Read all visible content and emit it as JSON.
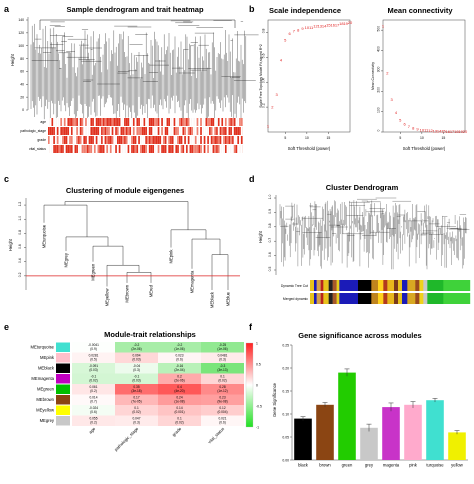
{
  "panel_labels": [
    "a",
    "b",
    "c",
    "d",
    "e",
    "f"
  ],
  "chart_data": [
    {
      "panel": "a",
      "type": "dendrogram",
      "title": "Sample dendrogram and trait heatmap",
      "ylabel": "Height",
      "yticks": [
        "0",
        "20",
        "40",
        "60",
        "80",
        "100",
        "120",
        "140"
      ],
      "traits": [
        "age",
        "pathologic_stage",
        "grade",
        "vital_status"
      ]
    },
    {
      "panel": "b1",
      "type": "scatter",
      "title": "Scale independence",
      "xlabel": "Soft Threshold (power)",
      "ylabel": "Scale Free Topology Model Fit,signed R^2",
      "xticks": [
        "5",
        "10",
        "15"
      ],
      "yticks": [
        "0.2",
        "0.4",
        "0.6",
        "0.8"
      ],
      "xlim": [
        1,
        20
      ],
      "ylim": [
        0.0,
        0.9
      ],
      "x": [
        1,
        2,
        3,
        4,
        5,
        6,
        7,
        8,
        9,
        10,
        11,
        12,
        13,
        14,
        15,
        16,
        17,
        18,
        19,
        20
      ],
      "y": [
        0.05,
        0.2,
        0.3,
        0.58,
        0.74,
        0.79,
        0.81,
        0.82,
        0.83,
        0.84,
        0.84,
        0.85,
        0.85,
        0.85,
        0.86,
        0.86,
        0.86,
        0.87,
        0.87,
        0.88
      ]
    },
    {
      "panel": "b2",
      "type": "scatter",
      "title": "Mean connectivity",
      "xlabel": "Soft Threshold (power)",
      "ylabel": "Mean Connectivity",
      "xticks": [
        "5",
        "10",
        "15"
      ],
      "yticks": [
        "0",
        "100",
        "200",
        "300",
        "400",
        "500"
      ],
      "xlim": [
        1,
        20
      ],
      "ylim": [
        0,
        550
      ],
      "x": [
        1,
        2,
        3,
        4,
        5,
        6,
        7,
        8,
        9,
        10,
        11,
        12,
        13,
        14,
        15,
        16,
        17,
        18,
        19,
        20
      ],
      "y": [
        520,
        290,
        160,
        95,
        60,
        40,
        28,
        20,
        15,
        11,
        9,
        7,
        6,
        5,
        4,
        3,
        3,
        2,
        2,
        2
      ]
    },
    {
      "panel": "c",
      "type": "dendrogram",
      "title": "Clustering of module eigengenes",
      "ylabel": "Height",
      "yticks": [
        "0.2",
        "0.4",
        "0.6",
        "0.8",
        "1.0",
        "1.2"
      ],
      "ylim": [
        0.0,
        1.3
      ],
      "cut_height": 0.2,
      "leaves": [
        "MEturquoise",
        "MEgrey",
        "MEgreen",
        "MEyellow",
        "MEbrown",
        "MEred",
        "MEpink",
        "MEmagenta",
        "MEblack",
        "MEblue"
      ]
    },
    {
      "panel": "d",
      "type": "dendrogram",
      "title": "Cluster Dendrogram",
      "ylabel": "Height",
      "yticks": [
        "0.5",
        "0.6",
        "0.7",
        "0.8",
        "0.9",
        "1.0"
      ],
      "color_rows": [
        "Dynamic Tree Cut",
        "Merged dynamic"
      ],
      "segments": [
        {
          "color": "#e6c21c",
          "w": 3
        },
        {
          "color": "#1b1bb8",
          "w": 2
        },
        {
          "color": "#d4a24a",
          "w": 3
        },
        {
          "color": "#b8241e",
          "w": 2
        },
        {
          "color": "#e8c21c",
          "w": 4
        },
        {
          "color": "#222222",
          "w": 3
        },
        {
          "color": "#a85a2a",
          "w": 3
        },
        {
          "color": "#e6d11c",
          "w": 2
        },
        {
          "color": "#1b1bb8",
          "w": 14
        },
        {
          "color": "#000000",
          "w": 10
        },
        {
          "color": "#c0841e",
          "w": 5
        },
        {
          "color": "#ffd21c",
          "w": 4
        },
        {
          "color": "#b23a1e",
          "w": 3
        },
        {
          "color": "#e8b81c",
          "w": 5
        },
        {
          "color": "#7a3a1a",
          "w": 3
        },
        {
          "color": "#e6c21c",
          "w": 3
        },
        {
          "color": "#1b1bb8",
          "w": 4
        },
        {
          "color": "#d8a822",
          "w": 6
        },
        {
          "color": "#9a4a1e",
          "w": 3
        },
        {
          "color": "#f0d21c",
          "w": 3
        },
        {
          "color": "#c8c8c8",
          "w": 3
        },
        {
          "color": "#1fb82a",
          "w": 12
        },
        {
          "color": "#3fd23a",
          "w": 20
        }
      ]
    },
    {
      "panel": "e",
      "type": "heatmap",
      "title": "Module-trait relationships",
      "rows": [
        "MEturquoise",
        "MEpink",
        "MEblack",
        "MEmagenta",
        "MEgreen",
        "MEbrown",
        "MEyellow",
        "MEgrey"
      ],
      "row_colors": [
        "#40e0d0",
        "#ffc0cb",
        "#000000",
        "#c000c0",
        "#00c000",
        "#8b4513",
        "#ffff00",
        "#c8c8c8"
      ],
      "cols": [
        "age",
        "pathologic_stage",
        "grade",
        "vital_status"
      ],
      "values": [
        [
          -0.0041,
          -0.2,
          -0.2,
          -0.25
        ],
        [
          0.0281,
          0.094,
          0.023,
          0.0481
        ],
        [
          -0.091,
          -0.04,
          -0.16,
          -0.3
        ],
        [
          -0.1,
          -0.1,
          0.2,
          0.1
        ],
        [
          0.061,
          0.35,
          0.4,
          0.28
        ],
        [
          0.014,
          0.17,
          0.24,
          0.23
        ],
        [
          -0.024,
          0.1,
          0.14,
          0.12
        ],
        [
          0.055,
          0.047,
          0.1,
          0.021
        ]
      ],
      "labels": [
        [
          "-0.0041\n(0.9)",
          "-0.2\n(2e-06)",
          "-0.2\n(1e-06)",
          "-0.25\n(1e-06)"
        ],
        [
          "0.0281\n(0.5)",
          "0.094\n(0.03)",
          "0.023\n(0.6)",
          "0.0481\n(0.3)"
        ],
        [
          "-0.091\n(0.03)",
          "-0.04\n(0.3)",
          "-0.16\n(2e-04)",
          "-0.3\n(3e-13)"
        ],
        [
          "-0.1\n(0.02)",
          "-0.1\n(0.03)",
          "0.2\n(2e-06)",
          "0.1\n(0.02)"
        ],
        [
          "0.061\n(0.2)",
          "0.35\n(3e-18)",
          "0.4\n(4e-20)",
          "0.28\n(1e-12)"
        ],
        [
          "0.014\n(0.7)",
          "0.17\n(7e-05)",
          "0.24\n(1e-08)",
          "0.23\n(9e-08)"
        ],
        [
          "-0.024\n(0.6)",
          "0.1\n(0.02)",
          "0.14\n(0.001)",
          "0.12\n(0.004)"
        ],
        [
          "0.055\n(0.2)",
          "0.047\n(0.3)",
          "0.1\n(0.02)",
          "0.021\n(0.6)"
        ]
      ],
      "scale_ticks": [
        "1",
        "0.5",
        "0",
        "-0.5",
        "-1"
      ],
      "scale_colors": [
        "#ff2020",
        "#ffffff",
        "#22e022"
      ]
    },
    {
      "panel": "f",
      "type": "bar",
      "title": "Gene significance across modules",
      "ylabel": "Gene Significance",
      "categories": [
        "black",
        "brown",
        "green",
        "grey",
        "magenta",
        "pink",
        "turquoise",
        "yellow"
      ],
      "values": [
        0.09,
        0.12,
        0.19,
        0.07,
        0.115,
        0.12,
        0.13,
        0.06
      ],
      "errors": [
        0.004,
        0.005,
        0.008,
        0.008,
        0.009,
        0.007,
        0.004,
        0.004
      ],
      "colors": [
        "#000000",
        "#8b4513",
        "#22cc00",
        "#c8c8c8",
        "#c833c8",
        "#ffaacc",
        "#40e0d0",
        "#f0f000"
      ],
      "ylim": [
        0.0,
        0.25
      ],
      "yticks": [
        "0.00",
        "0.05",
        "0.10",
        "0.15",
        "0.20",
        "0.25"
      ]
    }
  ]
}
